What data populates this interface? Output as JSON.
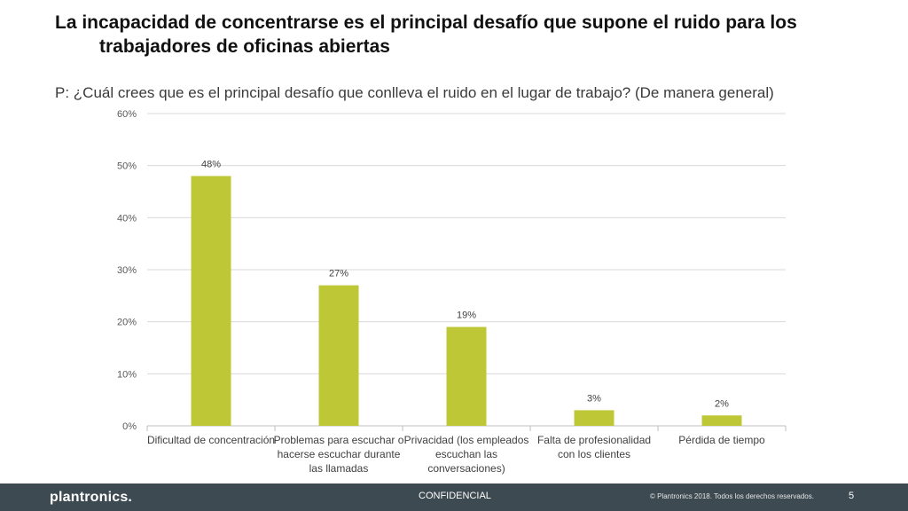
{
  "slide": {
    "title_line1": "La incapacidad de concentrarse es el principal desafío que supone el ruido para los",
    "title_line2": "trabajadores de oficinas abiertas",
    "question": "P: ¿Cuál crees que es el principal desafío que conlleva el ruido en el lugar de trabajo? (De manera general)"
  },
  "footer": {
    "logo": "plantronics.",
    "confidential": "CONFIDENCIAL",
    "copyright": "© Plantronics 2018. Todos los derechos reservados.",
    "page_number": "5"
  },
  "colors": {
    "bar": "#bec837",
    "grid": "#d9d9d9",
    "footer_bg": "#3d4a51"
  },
  "chart_data": {
    "type": "bar",
    "categories": [
      [
        "Dificultad de concentración"
      ],
      [
        "Problemas para escuchar o",
        "hacerse escuchar durante",
        "las llamadas"
      ],
      [
        "Privacidad (los empleados",
        "escuchan las",
        "conversaciones)"
      ],
      [
        "Falta de profesionalidad",
        "con los clientes"
      ],
      [
        "Pérdida de tiempo"
      ]
    ],
    "values": [
      48,
      27,
      19,
      3,
      2
    ],
    "data_labels": [
      "48%",
      "27%",
      "19%",
      "3%",
      "2%"
    ],
    "yticks": [
      0,
      10,
      20,
      30,
      40,
      50,
      60
    ],
    "ytick_labels": [
      "0%",
      "10%",
      "20%",
      "30%",
      "40%",
      "50%",
      "60%"
    ],
    "ylim": [
      0,
      60
    ],
    "grid": true,
    "legend": "none"
  }
}
